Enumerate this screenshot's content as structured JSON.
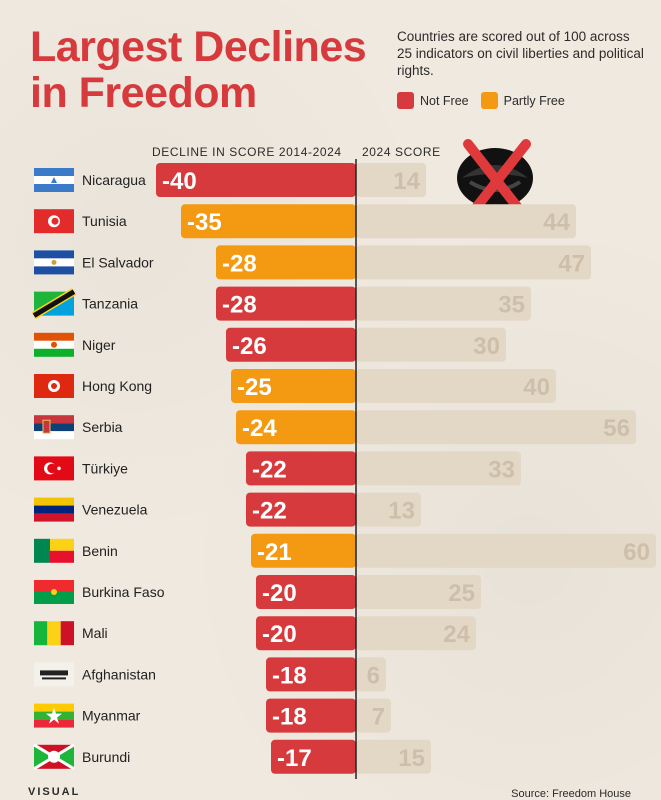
{
  "header": {
    "title_line1": "Largest Declines",
    "title_line2": "in Freedom",
    "subtitle": "Countries are scored out of 100 across 25 indicators on civil liberties and political rights."
  },
  "legend": [
    {
      "label": "Not Free",
      "color": "#d73a3c"
    },
    {
      "label": "Partly Free",
      "color": "#f39a12"
    }
  ],
  "column_headers": {
    "decline": "DECLINE IN SCORE 2014-2024",
    "score": "2024 SCORE"
  },
  "footer": {
    "logo": "VISUAL",
    "source": "Source: Freedom House"
  },
  "chart_data": {
    "type": "bar",
    "title": "Largest Declines in Freedom",
    "categories": [
      "Nicaragua",
      "Tunisia",
      "El Salvador",
      "Tanzania",
      "Niger",
      "Hong Kong",
      "Serbia",
      "Türkiye",
      "Venezuela",
      "Benin",
      "Burkina Faso",
      "Mali",
      "Afghanistan",
      "Myanmar",
      "Burundi"
    ],
    "series": [
      {
        "name": "DECLINE IN SCORE 2014-2024",
        "values": [
          -40,
          -35,
          -28,
          -28,
          -26,
          -25,
          -24,
          -22,
          -22,
          -21,
          -20,
          -20,
          -18,
          -18,
          -17
        ]
      },
      {
        "name": "2024 SCORE",
        "values": [
          14,
          44,
          47,
          35,
          30,
          40,
          56,
          33,
          13,
          60,
          25,
          24,
          6,
          7,
          15
        ]
      }
    ],
    "status": [
      "Not Free",
      "Partly Free",
      "Partly Free",
      "Not Free",
      "Not Free",
      "Partly Free",
      "Partly Free",
      "Not Free",
      "Not Free",
      "Partly Free",
      "Not Free",
      "Not Free",
      "Not Free",
      "Not Free",
      "Not Free"
    ],
    "colors": {
      "Not Free": "#d73a3c",
      "Partly Free": "#f39a12",
      "score": "#e3d7c6",
      "score_text": "#cdbfa9"
    },
    "flags": [
      "flag-nicaragua",
      "flag-tunisia",
      "flag-el-salvador",
      "flag-tanzania",
      "flag-niger",
      "flag-hong-kong",
      "flag-serbia",
      "flag-turkiye",
      "flag-venezuela",
      "flag-benin",
      "flag-burkina-faso",
      "flag-mali",
      "flag-afghanistan",
      "flag-myanmar",
      "flag-burundi"
    ]
  }
}
